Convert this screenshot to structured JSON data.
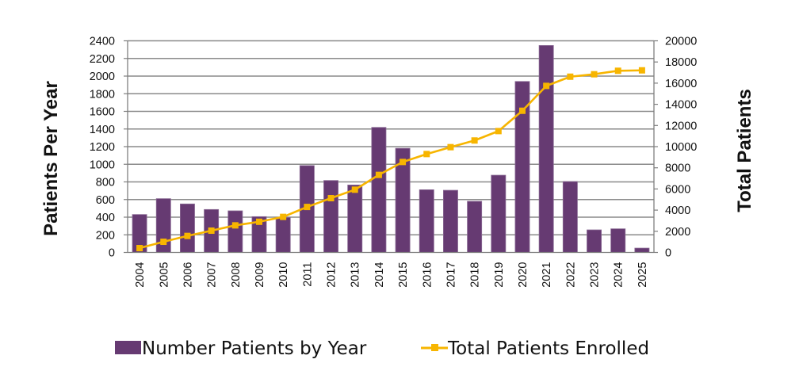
{
  "chart_data": {
    "type": "bar",
    "title": "",
    "xlabel": "",
    "ylabel": "Patients Per Year",
    "y2label": "Total Patients",
    "categories": [
      "2004",
      "2005",
      "2006",
      "2007",
      "2008",
      "2009",
      "2010",
      "2011",
      "2012",
      "2013",
      "2014",
      "2015",
      "2016",
      "2017",
      "2018",
      "2019",
      "2020",
      "2021",
      "2022",
      "2023",
      "2024",
      "2025"
    ],
    "ylim": [
      0,
      2400
    ],
    "y_ticks": [
      0,
      200,
      400,
      600,
      800,
      1000,
      1200,
      1400,
      1600,
      1800,
      2000,
      2200,
      2400
    ],
    "y2lim": [
      0,
      20000
    ],
    "y2_ticks": [
      0,
      2000,
      4000,
      6000,
      8000,
      10000,
      12000,
      14000,
      16000,
      18000,
      20000
    ],
    "grid": true,
    "legend_position": "bottom",
    "series": [
      {
        "name": "Number Patients by Year",
        "type": "bar",
        "axis": "left",
        "color": "#663a72",
        "values": [
          430,
          610,
          550,
          487,
          472,
          406,
          397,
          985,
          816,
          765,
          1418,
          1181,
          711,
          705,
          580,
          876,
          1939,
          2347,
          804,
          256,
          268,
          49
        ]
      },
      {
        "name": "Total Patients Enrolled",
        "type": "line",
        "axis": "right",
        "marker": "square",
        "color": "#f7b500",
        "values": [
          410,
          1010,
          1560,
          2060,
          2560,
          2900,
          3360,
          4300,
          5130,
          5930,
          7330,
          8550,
          9300,
          9950,
          10580,
          11470,
          13390,
          15740,
          16610,
          16840,
          17170,
          17210
        ]
      }
    ]
  }
}
